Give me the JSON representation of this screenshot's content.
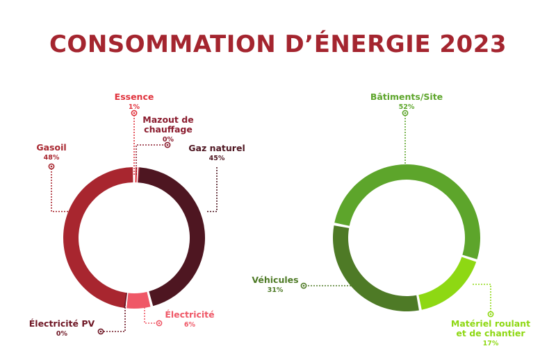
{
  "title": "CONSOMMATION D’ÉNERGIE 2023",
  "chart_data": [
    {
      "type": "pie",
      "style": "donut",
      "slices": [
        {
          "label_lines": [
            "Essence"
          ],
          "value": 1,
          "value_text": "1%",
          "color": "#e0333d"
        },
        {
          "label_lines": [
            "Mazout de",
            "chauffage"
          ],
          "value": 0,
          "value_text": "0%",
          "color": "#8a1c2e"
        },
        {
          "label_lines": [
            "Gaz naturel"
          ],
          "value": 45,
          "value_text": "45%",
          "color": "#4e1621"
        },
        {
          "label_lines": [
            "Électricité"
          ],
          "value": 6,
          "value_text": "6%",
          "color": "#ef5867"
        },
        {
          "label_lines": [
            "Électricité PV"
          ],
          "value": 0,
          "value_text": "0%",
          "color": "#6e1624"
        },
        {
          "label_lines": [
            "Gasoil"
          ],
          "value": 48,
          "value_text": "48%",
          "color": "#a8262f"
        }
      ]
    },
    {
      "type": "pie",
      "style": "donut",
      "slices": [
        {
          "label_lines": [
            "Bâtiments/Site"
          ],
          "value": 52,
          "value_text": "52%",
          "color": "#5da52b"
        },
        {
          "label_lines": [
            "Matériel roulant",
            "et de chantier"
          ],
          "value": 17,
          "value_text": "17%",
          "color": "#8ed813"
        },
        {
          "label_lines": [
            "Véhicules"
          ],
          "value": 31,
          "value_text": "31%",
          "color": "#4e7a26"
        }
      ]
    }
  ]
}
